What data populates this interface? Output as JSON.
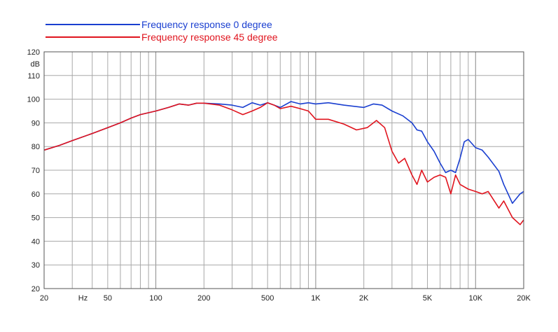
{
  "chart_data": {
    "type": "line",
    "title": "",
    "xlabel": "",
    "ylabel": "",
    "x_scale": "log",
    "xlim": [
      20,
      20000
    ],
    "ylim": [
      20,
      120
    ],
    "grid": true,
    "legend_position": "top-left",
    "unit_labels": {
      "y_unit": "dB",
      "x_unit": "Hz"
    },
    "x_ticks": [
      {
        "value": 20,
        "label": "20"
      },
      {
        "value": 50,
        "label": "50"
      },
      {
        "value": 100,
        "label": "100"
      },
      {
        "value": 200,
        "label": "200"
      },
      {
        "value": 500,
        "label": "500"
      },
      {
        "value": 1000,
        "label": "1K"
      },
      {
        "value": 2000,
        "label": "2K"
      },
      {
        "value": 5000,
        "label": "5K"
      },
      {
        "value": 10000,
        "label": "10K"
      },
      {
        "value": 20000,
        "label": "20K"
      }
    ],
    "y_ticks": [
      {
        "value": 120,
        "label": "120"
      },
      {
        "value": 110,
        "label": "110"
      },
      {
        "value": 100,
        "label": "100"
      },
      {
        "value": 90,
        "label": "90"
      },
      {
        "value": 80,
        "label": "80"
      },
      {
        "value": 70,
        "label": "70"
      },
      {
        "value": 60,
        "label": "60"
      },
      {
        "value": 50,
        "label": "50"
      },
      {
        "value": 40,
        "label": "40"
      },
      {
        "value": 30,
        "label": "30"
      },
      {
        "value": 20,
        "label": "20"
      }
    ],
    "series": [
      {
        "name": "Frequency response 0 degree",
        "color": "#1a3fd0",
        "points": [
          [
            20,
            78.5
          ],
          [
            25,
            80.5
          ],
          [
            30,
            82.5
          ],
          [
            40,
            85.5
          ],
          [
            50,
            88
          ],
          [
            60,
            90
          ],
          [
            70,
            92
          ],
          [
            80,
            93.5
          ],
          [
            100,
            95
          ],
          [
            120,
            96.5
          ],
          [
            140,
            98
          ],
          [
            160,
            97.5
          ],
          [
            180,
            98.3
          ],
          [
            200,
            98.3
          ],
          [
            250,
            98
          ],
          [
            300,
            97.5
          ],
          [
            350,
            96.5
          ],
          [
            400,
            98.5
          ],
          [
            450,
            97.5
          ],
          [
            500,
            98.5
          ],
          [
            550,
            97.5
          ],
          [
            600,
            96.5
          ],
          [
            700,
            99
          ],
          [
            800,
            98
          ],
          [
            900,
            98.5
          ],
          [
            1000,
            98
          ],
          [
            1200,
            98.5
          ],
          [
            1500,
            97.5
          ],
          [
            2000,
            96.5
          ],
          [
            2300,
            98
          ],
          [
            2600,
            97.5
          ],
          [
            3000,
            95
          ],
          [
            3500,
            93
          ],
          [
            4000,
            90
          ],
          [
            4300,
            87
          ],
          [
            4600,
            86.5
          ],
          [
            5000,
            82
          ],
          [
            5500,
            78
          ],
          [
            6000,
            73
          ],
          [
            6500,
            69
          ],
          [
            7000,
            70
          ],
          [
            7500,
            69
          ],
          [
            8000,
            75
          ],
          [
            8500,
            82
          ],
          [
            9000,
            83
          ],
          [
            10000,
            79.5
          ],
          [
            11000,
            78.5
          ],
          [
            12000,
            75.5
          ],
          [
            14000,
            69.5
          ],
          [
            15000,
            64
          ],
          [
            17000,
            56
          ],
          [
            19000,
            60
          ],
          [
            20000,
            61
          ]
        ]
      },
      {
        "name": "Frequency response 45 degree",
        "color": "#e0141e",
        "points": [
          [
            20,
            78.5
          ],
          [
            25,
            80.5
          ],
          [
            30,
            82.5
          ],
          [
            40,
            85.5
          ],
          [
            50,
            88
          ],
          [
            60,
            90
          ],
          [
            70,
            92
          ],
          [
            80,
            93.5
          ],
          [
            100,
            95
          ],
          [
            120,
            96.5
          ],
          [
            140,
            98
          ],
          [
            160,
            97.5
          ],
          [
            180,
            98.3
          ],
          [
            200,
            98.3
          ],
          [
            250,
            97.5
          ],
          [
            300,
            95.5
          ],
          [
            350,
            93.5
          ],
          [
            400,
            95
          ],
          [
            450,
            96.5
          ],
          [
            500,
            98.5
          ],
          [
            550,
            97.5
          ],
          [
            600,
            96
          ],
          [
            700,
            97
          ],
          [
            800,
            96
          ],
          [
            900,
            95
          ],
          [
            1000,
            91.5
          ],
          [
            1200,
            91.5
          ],
          [
            1500,
            89.5
          ],
          [
            1800,
            87
          ],
          [
            2100,
            88
          ],
          [
            2400,
            91
          ],
          [
            2700,
            88
          ],
          [
            3000,
            78
          ],
          [
            3300,
            73
          ],
          [
            3600,
            75
          ],
          [
            4000,
            68
          ],
          [
            4300,
            64
          ],
          [
            4600,
            70
          ],
          [
            5000,
            65
          ],
          [
            5500,
            67
          ],
          [
            6000,
            68
          ],
          [
            6500,
            67
          ],
          [
            7000,
            60
          ],
          [
            7500,
            68
          ],
          [
            8000,
            64
          ],
          [
            9000,
            62
          ],
          [
            10000,
            61
          ],
          [
            11000,
            60
          ],
          [
            12000,
            61
          ],
          [
            14000,
            54
          ],
          [
            15000,
            57
          ],
          [
            17000,
            50
          ],
          [
            19000,
            47
          ],
          [
            20000,
            49
          ]
        ]
      }
    ]
  }
}
